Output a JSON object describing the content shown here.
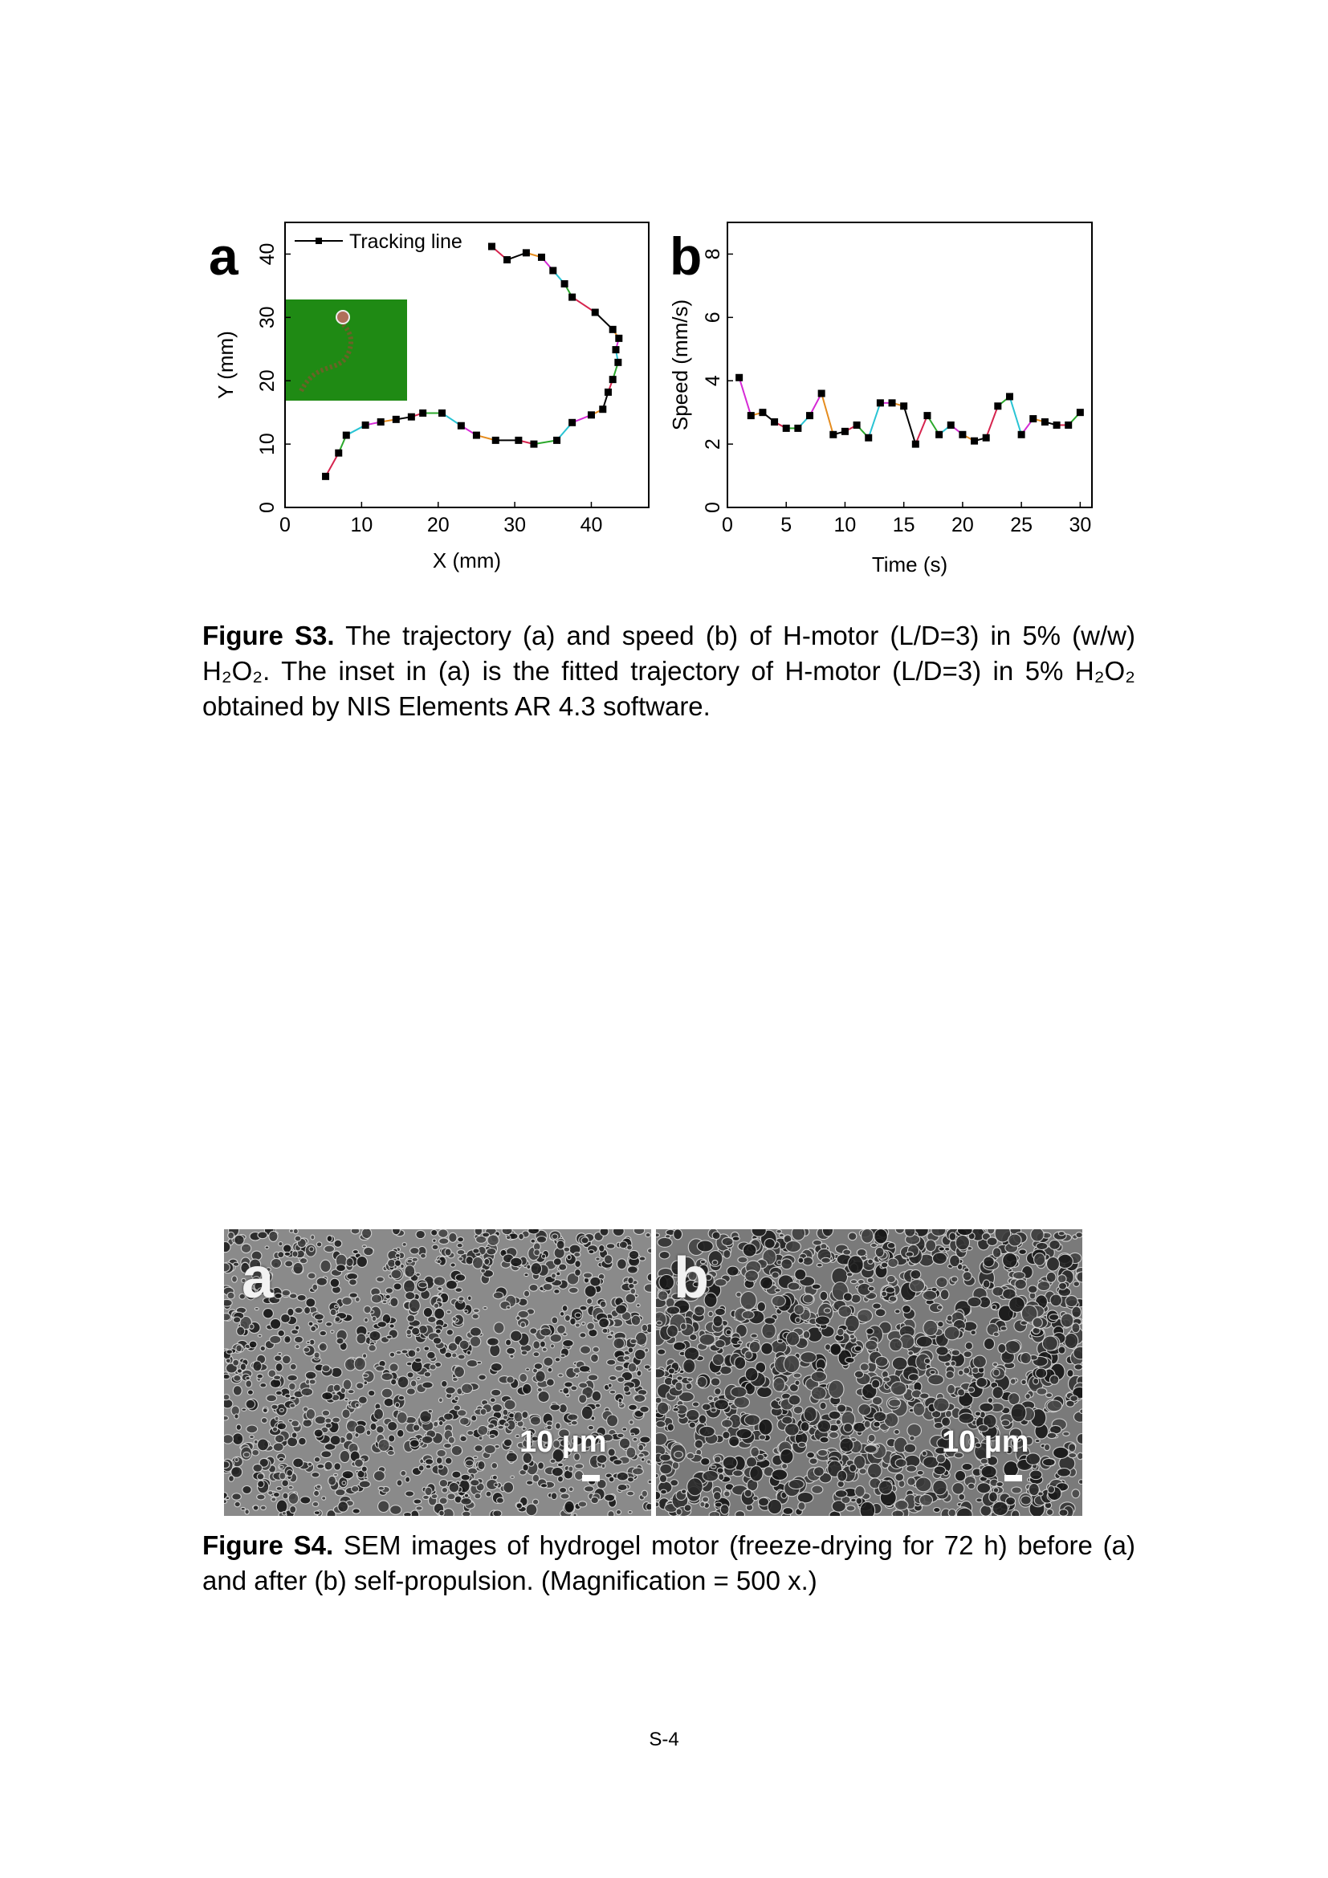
{
  "chart_data": [
    {
      "type": "line",
      "panel_label": "a",
      "xlabel": "X (mm)",
      "ylabel": "Y (mm)",
      "xlim": [
        0,
        47.5
      ],
      "ylim": [
        0,
        45
      ],
      "xticks": [
        0,
        10,
        20,
        30,
        40
      ],
      "yticks": [
        0,
        10,
        20,
        30,
        40
      ],
      "legend": "top-left",
      "inset": "fitted trajectory image, top-left",
      "series": [
        {
          "name": "Tracking line",
          "points": [
            [
              5.3,
              4.9
            ],
            [
              7.0,
              8.6
            ],
            [
              8.0,
              11.4
            ],
            [
              10.5,
              13.0
            ],
            [
              12.5,
              13.5
            ],
            [
              14.5,
              13.9
            ],
            [
              16.5,
              14.3
            ],
            [
              18.0,
              14.9
            ],
            [
              20.5,
              14.9
            ],
            [
              23.0,
              12.9
            ],
            [
              25.0,
              11.4
            ],
            [
              27.5,
              10.6
            ],
            [
              30.5,
              10.6
            ],
            [
              32.5,
              10.0
            ],
            [
              35.5,
              10.6
            ],
            [
              37.5,
              13.4
            ],
            [
              40.0,
              14.6
            ],
            [
              41.5,
              15.5
            ],
            [
              42.2,
              18.2
            ],
            [
              42.8,
              20.2
            ],
            [
              43.5,
              22.9
            ],
            [
              43.2,
              24.9
            ],
            [
              43.6,
              26.7
            ],
            [
              42.8,
              28.1
            ],
            [
              40.5,
              30.8
            ],
            [
              37.5,
              33.2
            ],
            [
              36.5,
              35.3
            ],
            [
              35.0,
              37.4
            ],
            [
              33.5,
              39.5
            ],
            [
              31.5,
              40.2
            ],
            [
              29.0,
              39.1
            ],
            [
              27.0,
              41.2
            ]
          ]
        }
      ]
    },
    {
      "type": "line",
      "panel_label": "b",
      "xlabel": "Time (s)",
      "ylabel": "Speed (mm/s)",
      "xlim": [
        0,
        31
      ],
      "ylim": [
        0,
        9
      ],
      "xticks": [
        0,
        5,
        10,
        15,
        20,
        25,
        30
      ],
      "yticks": [
        0,
        2,
        4,
        6,
        8
      ],
      "series": [
        {
          "name": "",
          "x": [
            1,
            2,
            3,
            4,
            5,
            6,
            7,
            8,
            9,
            10,
            11,
            12,
            13,
            14,
            15,
            16,
            17,
            18,
            19,
            20,
            21,
            22,
            23,
            24,
            25,
            26,
            27,
            28,
            29,
            30
          ],
          "values": [
            4.1,
            2.9,
            3.0,
            2.7,
            2.5,
            2.5,
            2.9,
            3.6,
            2.3,
            2.4,
            2.6,
            2.2,
            3.3,
            3.3,
            3.2,
            2.0,
            2.9,
            2.3,
            2.6,
            2.3,
            2.1,
            2.2,
            3.2,
            3.5,
            2.3,
            2.8,
            2.7,
            2.6,
            2.6,
            3.0
          ]
        }
      ]
    }
  ],
  "fig_s3_caption": {
    "label": "Figure S3.",
    "text": "The trajectory (a) and speed (b) of H-motor (L/D=3) in 5% (w/w) H₂O₂. The inset in (a) is the fitted trajectory of H-motor (L/D=3) in 5% H₂O₂ obtained by NIS Elements AR 4.3 software."
  },
  "fig_s4": {
    "panels": [
      {
        "label": "a",
        "scale_text": "10 µm"
      },
      {
        "label": "b",
        "scale_text": "10 µm"
      }
    ],
    "caption_label": "Figure S4.",
    "caption_text": "SEM images of hydrogel motor (freeze-drying for 72 h) before (a) and after (b) self-propulsion. (Magnification = 500 x.)"
  },
  "page_number": "S-4",
  "colors": {
    "inset_background": "#1f8a14",
    "segment_colors": [
      "#d6244e",
      "#2ba82b",
      "#29c4d4",
      "#d62ad6",
      "#e58c1e",
      "#000000"
    ]
  }
}
